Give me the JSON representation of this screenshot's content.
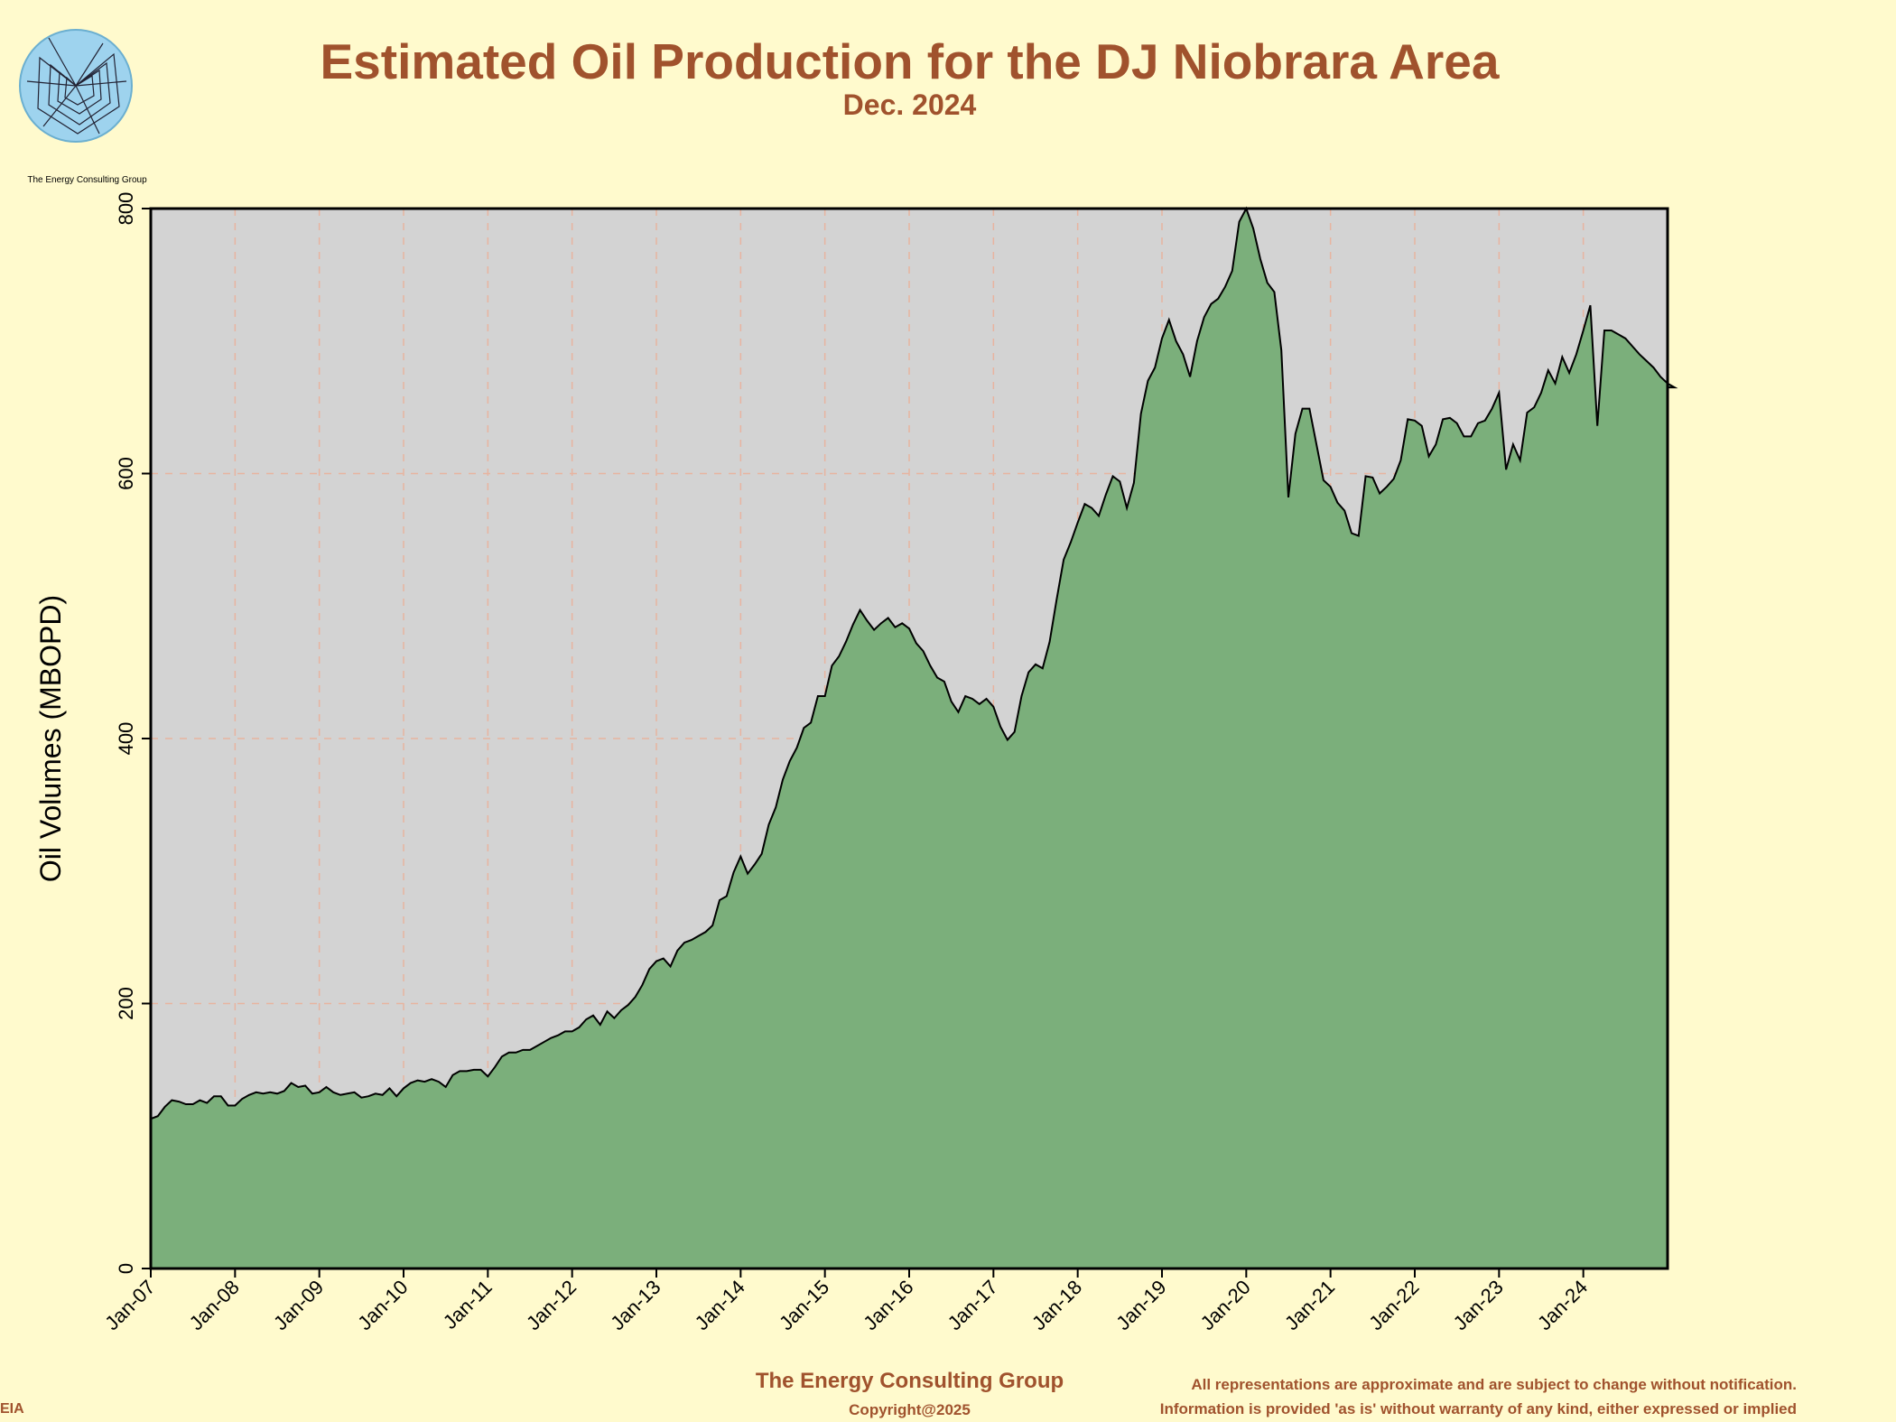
{
  "header": {
    "title": "Estimated Oil Production for the DJ Niobrara Area",
    "subtitle": "Dec. 2024"
  },
  "logo": {
    "caption": "The Energy Consulting Group",
    "icon": "spiral-logo-icon"
  },
  "footer": {
    "company": "The Energy Consulting Group",
    "copyright": "Copyright@2025",
    "disclaimer_line1": "All representations are approximate and are subject to change without notification.",
    "disclaimer_line2": "Information is provided 'as is' without warranty of any kind, either expressed or implied",
    "source": "EIA"
  },
  "colors": {
    "background": "#FFFACD",
    "plot_area": "#D3D3D3",
    "area_fill": "#7BAF7B",
    "accent_text": "#A0522D",
    "grid": "#E8B4A0"
  },
  "chart_data": {
    "type": "area",
    "title": "Estimated Oil Production for the DJ Niobrara Area",
    "subtitle": "Dec. 2024",
    "xlabel": "",
    "ylabel": "Oil Volumes (MBOPD)",
    "ylim": [
      0,
      800
    ],
    "yticks": [
      0,
      200,
      400,
      600,
      800
    ],
    "xticks": [
      "Jan-07",
      "Jan-08",
      "Jan-09",
      "Jan-10",
      "Jan-11",
      "Jan-12",
      "Jan-13",
      "Jan-14",
      "Jan-15",
      "Jan-16",
      "Jan-17",
      "Jan-18",
      "Jan-19",
      "Jan-20",
      "Jan-21",
      "Jan-22",
      "Jan-23",
      "Jan-24"
    ],
    "x_start": "Jan-07",
    "x_end": "Dec-24",
    "grid": true,
    "legend": "none",
    "series": [
      {
        "values": [
          113,
          115,
          122,
          127,
          126,
          124,
          124,
          127,
          125,
          130,
          130,
          123,
          123,
          128,
          131,
          133,
          132,
          133,
          132,
          134,
          140,
          137,
          138,
          132,
          133,
          137,
          133,
          131,
          132,
          133,
          129,
          130,
          132,
          131,
          136,
          130,
          136,
          140,
          142,
          141,
          143,
          141,
          137,
          146,
          149,
          149,
          150,
          150,
          145,
          152,
          160,
          163,
          163,
          165,
          165,
          168,
          171,
          174,
          176,
          179,
          179,
          182,
          188,
          191,
          184,
          194,
          189,
          195,
          199,
          205,
          214,
          226,
          232,
          234,
          228,
          240,
          246,
          248,
          251,
          254,
          259,
          278,
          281,
          299,
          311,
          298,
          305,
          313,
          335,
          348,
          369,
          383,
          393,
          408,
          412,
          432,
          432,
          455,
          462,
          473,
          486,
          497,
          489,
          482,
          487,
          491,
          484,
          487,
          483,
          472,
          466,
          455,
          446,
          443,
          428,
          420,
          432,
          430,
          426,
          430,
          424,
          409,
          399,
          405,
          432,
          450,
          456,
          453,
          473,
          505,
          535,
          548,
          563,
          577,
          574,
          568,
          584,
          598,
          594,
          574,
          593,
          645,
          670,
          680,
          702,
          716,
          700,
          690,
          673,
          700,
          718,
          728,
          732,
          741,
          753,
          790,
          800,
          785,
          762,
          744,
          737,
          693,
          582,
          630,
          649,
          649,
          622,
          595,
          590,
          578,
          572,
          555,
          553,
          598,
          597,
          585,
          590,
          596,
          610,
          641,
          640,
          636,
          613,
          622,
          641,
          642,
          638,
          628,
          628,
          638,
          640,
          649,
          661,
          603,
          622,
          610,
          646,
          650,
          661,
          678,
          668,
          688,
          676,
          690,
          708,
          727,
          636,
          708,
          708,
          705,
          702,
          696,
          690,
          685,
          680,
          673,
          668,
          665
        ]
      }
    ]
  }
}
